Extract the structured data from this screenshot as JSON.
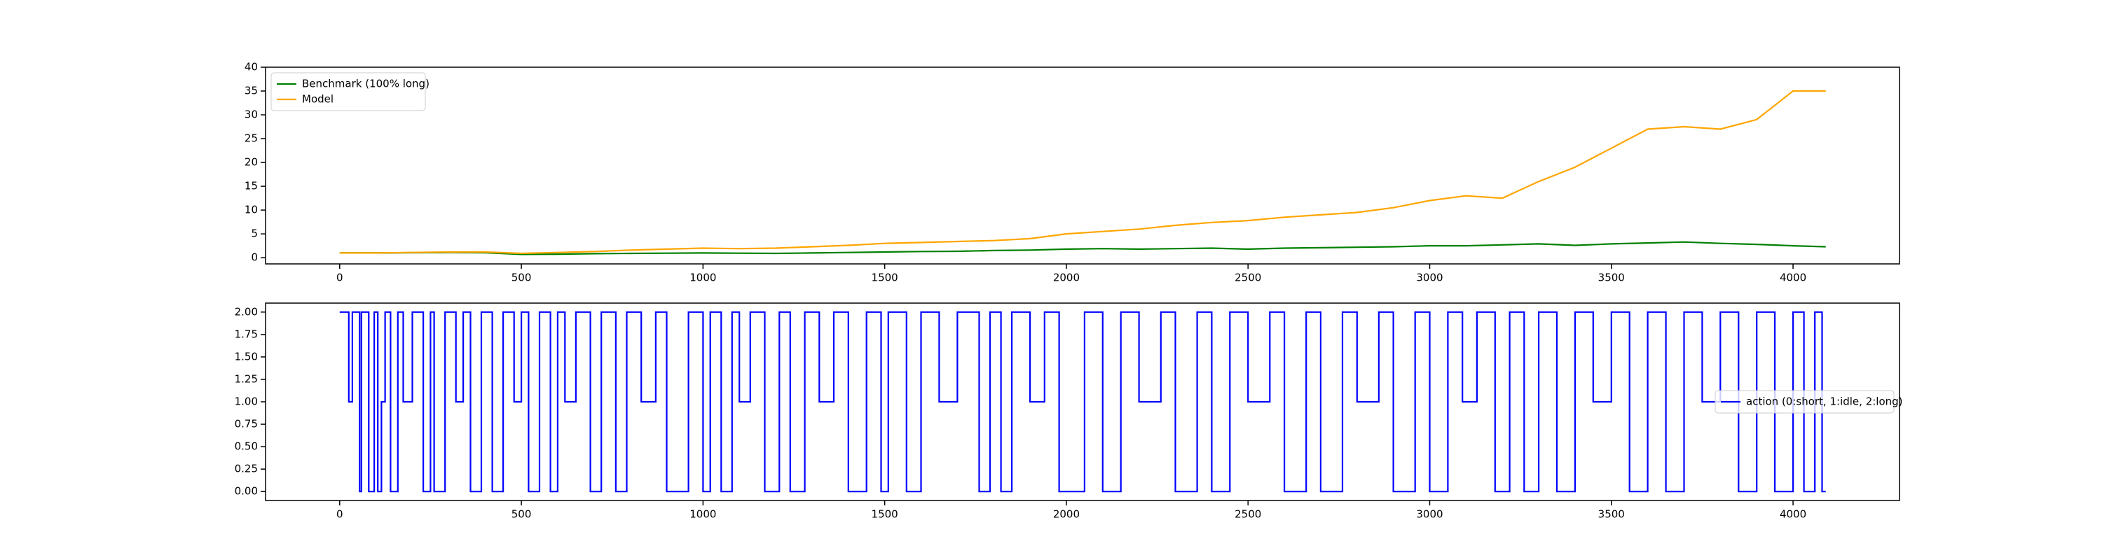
{
  "chart_data": [
    {
      "type": "line",
      "legend": "upper left",
      "x": [
        0,
        100,
        200,
        300,
        400,
        500,
        600,
        700,
        800,
        900,
        1000,
        1100,
        1200,
        1300,
        1400,
        1500,
        1600,
        1700,
        1800,
        1900,
        2000,
        2100,
        2200,
        2300,
        2400,
        2500,
        2600,
        2700,
        2800,
        2900,
        3000,
        3100,
        3200,
        3300,
        3400,
        3500,
        3600,
        3700,
        3800,
        3900,
        4000,
        4090
      ],
      "series": [
        {
          "name": "Benchmark (100% long)",
          "color": "#008000",
          "values": [
            1,
            1,
            1.05,
            1.1,
            1.05,
            0.7,
            0.75,
            0.85,
            0.9,
            0.95,
            1.0,
            0.95,
            0.9,
            1.0,
            1.1,
            1.2,
            1.3,
            1.35,
            1.5,
            1.6,
            1.8,
            1.9,
            1.8,
            1.9,
            2.0,
            1.8,
            2.0,
            2.1,
            2.2,
            2.3,
            2.5,
            2.5,
            2.7,
            2.9,
            2.6,
            2.9,
            3.1,
            3.3,
            3.0,
            2.8,
            2.5,
            2.3
          ]
        },
        {
          "name": "Model",
          "color": "#ffa500",
          "values": [
            1,
            1,
            1.1,
            1.2,
            1.2,
            0.9,
            1.1,
            1.3,
            1.6,
            1.8,
            2.0,
            1.9,
            2.0,
            2.3,
            2.6,
            3.0,
            3.2,
            3.4,
            3.6,
            4.0,
            5.0,
            5.5,
            6.0,
            6.8,
            7.4,
            7.8,
            8.5,
            9.0,
            9.5,
            10.5,
            12.0,
            13.0,
            12.5,
            16.0,
            19.0,
            23.0,
            27.0,
            27.5,
            27.0,
            29.0,
            35.0,
            35.0
          ]
        }
      ],
      "xlim": [
        -204,
        4293
      ],
      "xticks": [
        0,
        500,
        1000,
        1500,
        2000,
        2500,
        3000,
        3500,
        4000
      ],
      "ylim": [
        -1.3,
        40
      ],
      "yticks": [
        0,
        5,
        10,
        15,
        20,
        25,
        30,
        35,
        40
      ]
    },
    {
      "type": "step",
      "legend": "center right",
      "x": [
        0,
        25,
        35,
        55,
        60,
        80,
        95,
        105,
        115,
        125,
        140,
        160,
        175,
        200,
        230,
        250,
        260,
        290,
        320,
        340,
        360,
        390,
        420,
        450,
        480,
        500,
        520,
        550,
        580,
        600,
        620,
        650,
        690,
        720,
        760,
        790,
        830,
        870,
        900,
        960,
        1000,
        1020,
        1050,
        1080,
        1100,
        1130,
        1170,
        1210,
        1240,
        1280,
        1320,
        1360,
        1400,
        1450,
        1490,
        1510,
        1560,
        1600,
        1650,
        1700,
        1760,
        1790,
        1820,
        1850,
        1900,
        1940,
        1980,
        2050,
        2100,
        2150,
        2200,
        2260,
        2300,
        2360,
        2400,
        2450,
        2500,
        2560,
        2600,
        2660,
        2700,
        2760,
        2800,
        2860,
        2900,
        2960,
        3000,
        3050,
        3090,
        3130,
        3180,
        3220,
        3260,
        3300,
        3350,
        3400,
        3450,
        3500,
        3550,
        3600,
        3650,
        3700,
        3750,
        3800,
        3850,
        3900,
        3950,
        4000,
        4030,
        4060,
        4080,
        4090
      ],
      "series": [
        {
          "name": "action (0:short, 1:idle, 2:long)",
          "color": "#0000ff",
          "values": [
            2,
            1,
            2,
            0,
            2,
            0,
            2,
            0,
            1,
            2,
            0,
            2,
            1,
            2,
            0,
            2,
            0,
            2,
            1,
            2,
            0,
            2,
            0,
            2,
            1,
            2,
            0,
            2,
            0,
            2,
            1,
            2,
            0,
            2,
            0,
            2,
            1,
            2,
            0,
            2,
            0,
            2,
            0,
            2,
            1,
            2,
            0,
            2,
            0,
            2,
            1,
            2,
            0,
            2,
            0,
            2,
            0,
            2,
            1,
            2,
            0,
            2,
            0,
            2,
            1,
            2,
            0,
            2,
            0,
            2,
            1,
            2,
            0,
            2,
            0,
            2,
            1,
            2,
            0,
            2,
            0,
            2,
            1,
            2,
            0,
            2,
            0,
            2,
            1,
            2,
            0,
            2,
            0,
            2,
            0,
            2,
            1,
            2,
            0,
            2,
            0,
            2,
            1,
            2,
            0,
            2,
            0,
            2,
            0,
            2,
            0,
            0
          ]
        }
      ],
      "xlim": [
        -204,
        4293
      ],
      "xticks": [
        0,
        500,
        1000,
        1500,
        2000,
        2500,
        3000,
        3500,
        4000
      ],
      "ylim": [
        -0.1,
        2.1
      ],
      "yticks": [
        {
          "value": 0,
          "label": "0.00"
        },
        {
          "value": 0.25,
          "label": "0.25"
        },
        {
          "value": 0.5,
          "label": "0.50"
        },
        {
          "value": 0.75,
          "label": "0.75"
        },
        {
          "value": 1,
          "label": "1.00"
        },
        {
          "value": 1.25,
          "label": "1.25"
        },
        {
          "value": 1.5,
          "label": "1.50"
        },
        {
          "value": 1.75,
          "label": "1.75"
        },
        {
          "value": 2,
          "label": "2.00"
        }
      ]
    }
  ]
}
